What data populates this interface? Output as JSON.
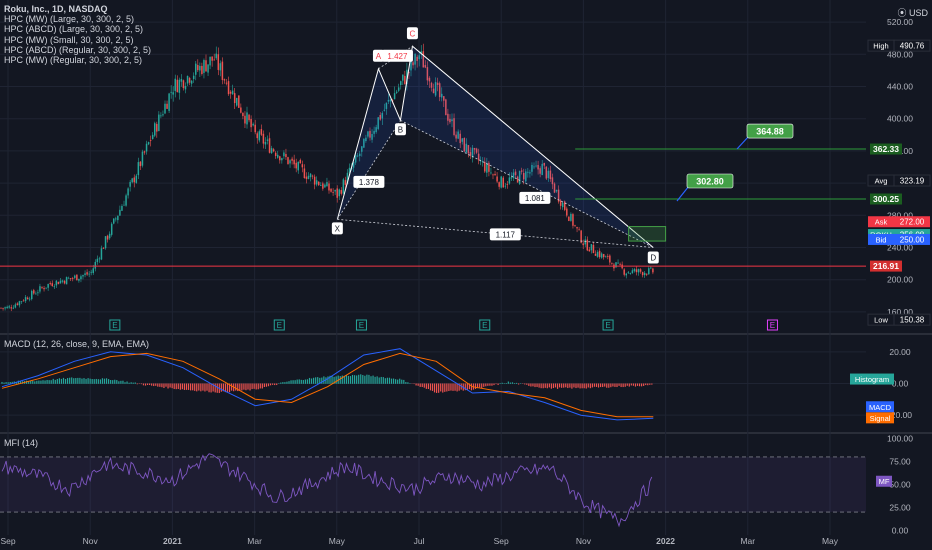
{
  "header": {
    "title": "Roku, Inc., 1D, NASDAQ",
    "indicators": [
      "HPC (MW) (Large, 30, 300, 2, 5)",
      "HPC (ABCD) (Large, 30, 300, 2, 5)",
      "HPC (MW) (Small, 30, 300, 2, 5)",
      "HPC (ABCD) (Regular, 30, 300, 2, 5)",
      "HPC (MW) (Regular, 30, 300, 2, 5)"
    ],
    "currency": "USD"
  },
  "colors": {
    "bg": "#131722",
    "grid": "#1f2433",
    "text": "#b2b5be",
    "up": "#26a69a",
    "down": "#ef5350",
    "pattern": "#ffffff",
    "green_level": "#2e9c3a",
    "red_level": "#f23645",
    "macd": "#2962ff",
    "signal": "#ff6d00",
    "mfi": "#7e57c2"
  },
  "chart_data": [
    {
      "type": "candlestick",
      "title": "Roku, Inc., 1D, NASDAQ",
      "x_ticks": [
        "Sep",
        "Nov",
        "2021",
        "Mar",
        "May",
        "Jul",
        "Sep",
        "Nov",
        "2022",
        "Mar",
        "May"
      ],
      "y_ticks": [
        160.0,
        200.0,
        240.0,
        280.0,
        320.0,
        360.0,
        400.0,
        440.0,
        480.0,
        520.0
      ],
      "ylim": [
        140,
        540
      ],
      "price_path": [
        {
          "date": "Sep 2020",
          "value": 165
        },
        {
          "date": "Oct 2020",
          "value": 195
        },
        {
          "date": "Nov 2020",
          "value": 208
        },
        {
          "date": "Dec 2020",
          "value": 320
        },
        {
          "date": "Jan 2021",
          "value": 440
        },
        {
          "date": "Feb 2021",
          "value": 475
        },
        {
          "date": "Mar 2021",
          "value": 380
        },
        {
          "date": "Apr 2021",
          "value": 340
        },
        {
          "date": "May 2021",
          "value": 305
        },
        {
          "date": "Jun 2021",
          "value": 400
        },
        {
          "date": "Jul 2021",
          "value": 480
        },
        {
          "date": "Aug 2021",
          "value": 370
        },
        {
          "date": "Sep 2021",
          "value": 320
        },
        {
          "date": "Oct 2021",
          "value": 340
        },
        {
          "date": "Nov 2021",
          "value": 245
        },
        {
          "date": "Dec 2021",
          "value": 210
        }
      ],
      "pattern_points": [
        {
          "label": "X",
          "date": "May 2021",
          "value": 275
        },
        {
          "label": "A",
          "date": "Jun 2021",
          "value": 462
        },
        {
          "label": "B",
          "date": "Jul 2021",
          "value": 398
        },
        {
          "label": "C",
          "date": "Jul 2021",
          "value": 490
        },
        {
          "label": "D",
          "date": "Dec 2021",
          "value": 240
        }
      ],
      "ratios": [
        "1.427",
        "1.378",
        "1.081",
        "1.117"
      ],
      "levels": [
        {
          "value": 362.33,
          "label": "362.33",
          "kind": "green"
        },
        {
          "value": 300.25,
          "label": "300.25",
          "kind": "green"
        },
        {
          "value": 216.91,
          "label": "216.91",
          "kind": "red"
        }
      ],
      "target_callouts": [
        "364.88",
        "302.80"
      ],
      "price_tags": [
        {
          "name": "High",
          "label": "High",
          "value": "490.76"
        },
        {
          "name": "Avg",
          "label": "Avg",
          "value": "323.19"
        },
        {
          "name": "Ask",
          "label": "Ask",
          "value": "272.00"
        },
        {
          "name": "ROKU",
          "label": "ROKU",
          "value": "256.08"
        },
        {
          "name": "Bid",
          "label": "Bid",
          "value": "250.00"
        },
        {
          "name": "Low",
          "label": "Low",
          "value": "150.38"
        }
      ],
      "earnings_markers": [
        "E",
        "E",
        "E",
        "E",
        "E",
        "E"
      ]
    },
    {
      "type": "line",
      "title": "MACD (12, 26, close, 9, EMA, EMA)",
      "y_ticks": [
        20.0,
        0.0,
        -20.0
      ],
      "ylim": [
        -30,
        30
      ],
      "series": [
        {
          "name": "MACD",
          "values": [
            -2,
            5,
            14,
            20,
            18,
            10,
            -3,
            -14,
            -10,
            3,
            18,
            22,
            8,
            -6,
            -5,
            -12,
            -20,
            -23,
            -22
          ]
        },
        {
          "name": "Signal",
          "values": [
            -3,
            3,
            10,
            17,
            19,
            14,
            3,
            -10,
            -12,
            -2,
            12,
            19,
            14,
            -2,
            -6,
            -9,
            -17,
            -21,
            -21
          ]
        }
      ],
      "labels": {
        "histogram": "Histogram",
        "macd": "MACD",
        "signal": "Signal"
      }
    },
    {
      "type": "line",
      "title": "MFI (14)",
      "y_ticks": [
        100.0,
        75.0,
        50.0,
        25.0,
        0.0
      ],
      "ylim": [
        -5,
        105
      ],
      "series": [
        {
          "name": "MF",
          "values": [
            70,
            60,
            45,
            72,
            65,
            55,
            80,
            60,
            35,
            50,
            70,
            55,
            45,
            60,
            50,
            62,
            68,
            30,
            10,
            53
          ]
        }
      ]
    }
  ]
}
